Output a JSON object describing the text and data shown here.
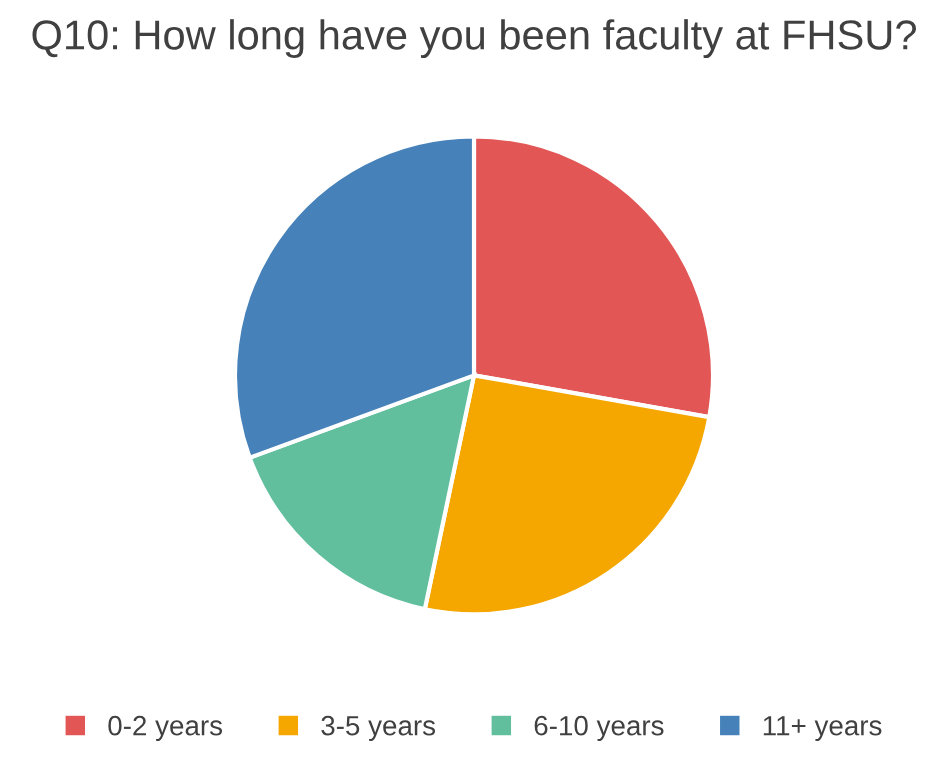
{
  "chart_data": {
    "type": "pie",
    "title": "Q10: How long have you been faculty at FHSU?",
    "categories": [
      "0-2 years",
      "3-5 years",
      "6-10 years",
      "11+ years"
    ],
    "values": [
      27.8,
      25.5,
      16.1,
      30.6
    ],
    "colors": [
      "#e35656",
      "#f5a700",
      "#61bf9e",
      "#4682b9"
    ],
    "legend": "bottom"
  }
}
